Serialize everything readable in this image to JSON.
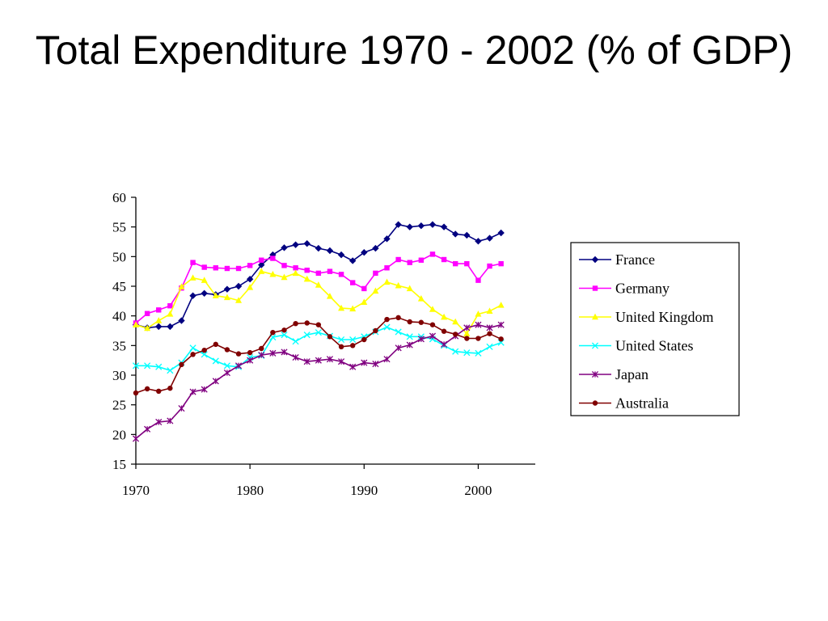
{
  "title": "Total Expenditure 1970 - 2002 (% of GDP)",
  "chart_data": {
    "type": "line",
    "title": "Total Expenditure 1970 - 2002 (% of GDP)",
    "xlabel": "",
    "ylabel": "",
    "xlim": [
      1970,
      2005
    ],
    "ylim": [
      15,
      60
    ],
    "x_ticks": [
      1970,
      1980,
      1990,
      2000
    ],
    "y_ticks": [
      15,
      20,
      25,
      30,
      35,
      40,
      45,
      50,
      55,
      60
    ],
    "grid": false,
    "legend_position": "right",
    "x": [
      1970,
      1971,
      1972,
      1973,
      1974,
      1975,
      1976,
      1977,
      1978,
      1979,
      1980,
      1981,
      1982,
      1983,
      1984,
      1985,
      1986,
      1987,
      1988,
      1989,
      1990,
      1991,
      1992,
      1993,
      1994,
      1995,
      1996,
      1997,
      1998,
      1999,
      2000,
      2001,
      2002
    ],
    "series": [
      {
        "name": "France",
        "color": "#000080",
        "marker": "diamond",
        "values": [
          38.5,
          38.0,
          38.2,
          38.2,
          39.2,
          43.4,
          43.8,
          43.6,
          44.5,
          45.0,
          46.2,
          48.6,
          50.3,
          51.5,
          52.0,
          52.2,
          51.4,
          51.0,
          50.3,
          49.3,
          50.7,
          51.4,
          53.0,
          55.4,
          55.0,
          55.2,
          55.4,
          55.0,
          53.8,
          53.6,
          52.6,
          53.1,
          54.0
        ]
      },
      {
        "name": "Germany",
        "color": "#FF00FF",
        "marker": "square",
        "values": [
          38.8,
          40.4,
          41.0,
          41.7,
          44.7,
          49.0,
          48.2,
          48.1,
          48.0,
          48.0,
          48.5,
          49.4,
          49.7,
          48.5,
          48.1,
          47.7,
          47.2,
          47.5,
          47.0,
          45.6,
          44.6,
          47.2,
          48.1,
          49.5,
          49.0,
          49.4,
          50.4,
          49.5,
          48.8,
          48.8,
          46.0,
          48.4,
          48.8
        ]
      },
      {
        "name": "United Kingdom",
        "color": "#FFFF00",
        "marker": "triangle",
        "values": [
          38.5,
          37.9,
          39.2,
          40.3,
          44.9,
          46.4,
          46.0,
          43.4,
          43.1,
          42.6,
          44.8,
          47.5,
          47.0,
          46.5,
          47.2,
          46.2,
          45.2,
          43.3,
          41.3,
          41.2,
          42.3,
          44.2,
          45.7,
          45.1,
          44.6,
          42.9,
          41.1,
          39.8,
          39.0,
          37.0,
          40.3,
          40.8,
          41.8
        ]
      },
      {
        "name": "United States",
        "color": "#00FFFF",
        "marker": "x",
        "values": [
          31.6,
          31.6,
          31.4,
          30.8,
          32.1,
          34.6,
          33.5,
          32.4,
          31.6,
          31.4,
          33.0,
          33.3,
          36.4,
          36.8,
          35.7,
          36.8,
          37.2,
          36.6,
          36.0,
          36.0,
          36.5,
          37.3,
          38.1,
          37.3,
          36.5,
          36.5,
          36.1,
          35.0,
          34.0,
          33.8,
          33.7,
          34.8,
          35.5
        ]
      },
      {
        "name": "Japan",
        "color": "#800080",
        "marker": "star",
        "values": [
          19.3,
          20.9,
          22.1,
          22.3,
          24.4,
          27.2,
          27.6,
          29.0,
          30.4,
          31.6,
          32.5,
          33.4,
          33.7,
          33.9,
          33.0,
          32.3,
          32.5,
          32.7,
          32.3,
          31.4,
          32.1,
          31.9,
          32.7,
          34.6,
          35.1,
          36.1,
          36.6,
          35.2,
          36.6,
          38.0,
          38.5,
          38.0,
          38.5
        ]
      },
      {
        "name": "Australia",
        "color": "#800000",
        "marker": "circle",
        "values": [
          27.0,
          27.7,
          27.3,
          27.8,
          31.8,
          33.5,
          34.2,
          35.2,
          34.3,
          33.6,
          33.8,
          34.5,
          37.2,
          37.6,
          38.7,
          38.8,
          38.5,
          36.5,
          34.8,
          35.0,
          36.0,
          37.5,
          39.4,
          39.7,
          39.0,
          38.9,
          38.5,
          37.4,
          36.9,
          36.2,
          36.2,
          37.0,
          36.1
        ]
      }
    ]
  }
}
